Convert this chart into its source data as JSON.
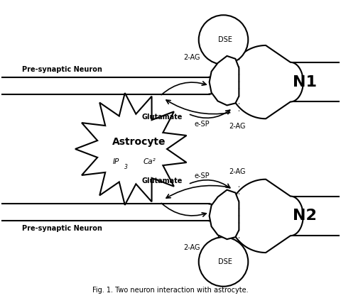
{
  "bg_color": "#ffffff",
  "title_caption": "Fig. 1. Two neuron interaction with astrocyte.",
  "n1_label": "N1",
  "n2_label": "N2",
  "astrocyte_label": "Astrocyte",
  "ip3_label": "IP",
  "ip3_sub": "3",
  "ca2_label": "Ca²",
  "dse_label": "DSE",
  "dse2_label": "DSE",
  "pre_synaptic_top": "Pre-synaptic Neuron",
  "pre_synaptic_bot": "Pre-synaptic Neuron",
  "glutamate_top": "Glutamate",
  "glutamate_bot": "Glutamate",
  "esp_top": "e-SP",
  "esp_bot": "e-SP",
  "ag_top_left": "2-AG",
  "ag_top_right": "2-AG",
  "ag_bot_left": "2-AG",
  "ag_bot_right": "2-AG"
}
